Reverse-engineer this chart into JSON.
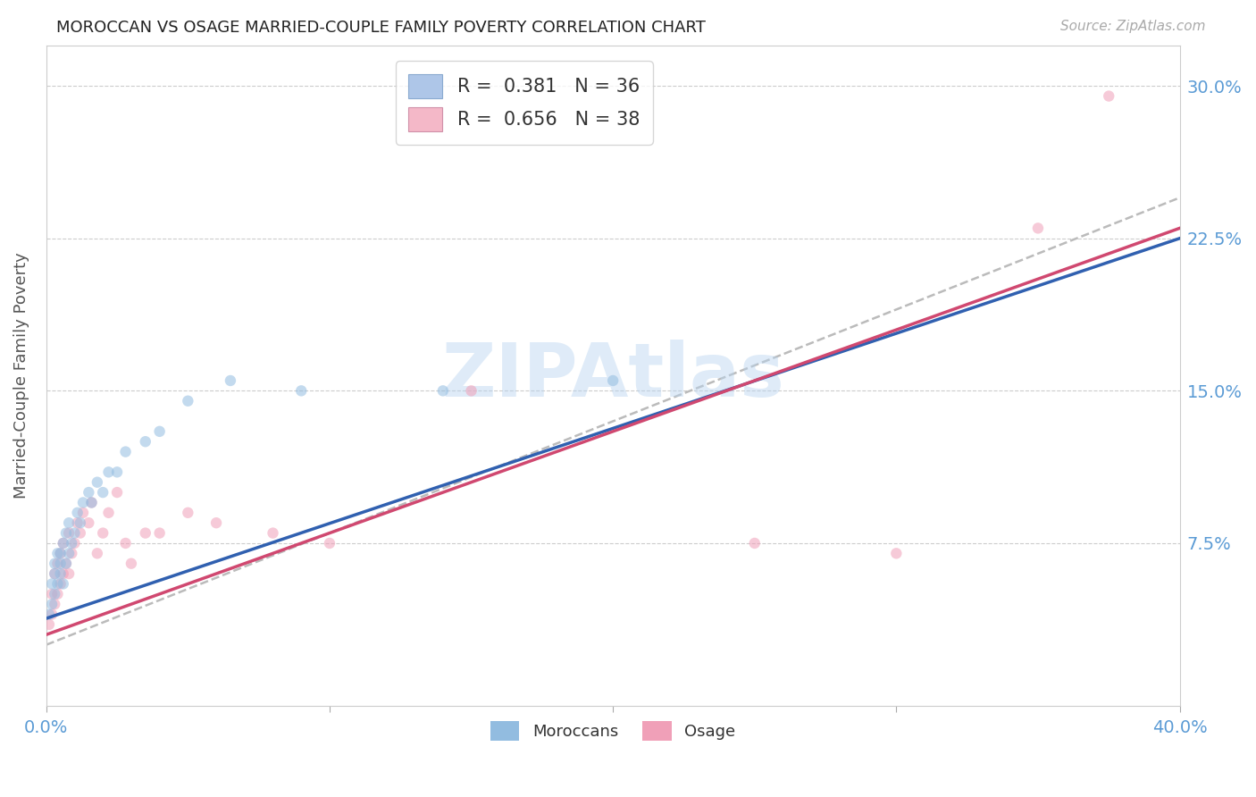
{
  "title": "MOROCCAN VS OSAGE MARRIED-COUPLE FAMILY POVERTY CORRELATION CHART",
  "source": "Source: ZipAtlas.com",
  "ylabel": "Married-Couple Family Poverty",
  "xlabel": "",
  "xlim": [
    0.0,
    0.4
  ],
  "ylim": [
    -0.005,
    0.32
  ],
  "xticks": [
    0.0,
    0.1,
    0.2,
    0.3,
    0.4
  ],
  "xticklabels": [
    "0.0%",
    "",
    "",
    "",
    "40.0%"
  ],
  "ytick_positions": [
    0.075,
    0.15,
    0.225,
    0.3
  ],
  "yticklabels": [
    "7.5%",
    "15.0%",
    "22.5%",
    "30.0%"
  ],
  "watermark": "ZIPAtlas",
  "moroccan_color": "#92bce0",
  "osage_color": "#f0a0b8",
  "moroccan_line_color": "#3060b0",
  "osage_line_color": "#d04870",
  "dashed_line_color": "#bbbbbb",
  "moroccan_N": 36,
  "osage_N": 38,
  "background_color": "#ffffff",
  "grid_color": "#cccccc",
  "marker_size": 80,
  "marker_alpha": 0.55,
  "title_color": "#222222",
  "axis_label_color": "#555555",
  "tick_label_color": "#5b9bd5",
  "moroccan_x": [
    0.001,
    0.002,
    0.002,
    0.003,
    0.003,
    0.003,
    0.004,
    0.004,
    0.005,
    0.005,
    0.005,
    0.006,
    0.006,
    0.007,
    0.007,
    0.008,
    0.008,
    0.009,
    0.01,
    0.011,
    0.012,
    0.013,
    0.015,
    0.016,
    0.018,
    0.02,
    0.022,
    0.025,
    0.028,
    0.035,
    0.04,
    0.05,
    0.065,
    0.09,
    0.14,
    0.2
  ],
  "moroccan_y": [
    0.04,
    0.045,
    0.055,
    0.05,
    0.06,
    0.065,
    0.055,
    0.07,
    0.06,
    0.065,
    0.07,
    0.055,
    0.075,
    0.065,
    0.08,
    0.07,
    0.085,
    0.075,
    0.08,
    0.09,
    0.085,
    0.095,
    0.1,
    0.095,
    0.105,
    0.1,
    0.11,
    0.11,
    0.12,
    0.125,
    0.13,
    0.145,
    0.155,
    0.15,
    0.15,
    0.155
  ],
  "osage_x": [
    0.001,
    0.002,
    0.002,
    0.003,
    0.003,
    0.004,
    0.004,
    0.005,
    0.005,
    0.006,
    0.006,
    0.007,
    0.008,
    0.008,
    0.009,
    0.01,
    0.011,
    0.012,
    0.013,
    0.015,
    0.016,
    0.018,
    0.02,
    0.022,
    0.025,
    0.028,
    0.03,
    0.035,
    0.04,
    0.05,
    0.06,
    0.08,
    0.1,
    0.15,
    0.25,
    0.3,
    0.35,
    0.375
  ],
  "osage_y": [
    0.035,
    0.04,
    0.05,
    0.045,
    0.06,
    0.05,
    0.065,
    0.055,
    0.07,
    0.06,
    0.075,
    0.065,
    0.06,
    0.08,
    0.07,
    0.075,
    0.085,
    0.08,
    0.09,
    0.085,
    0.095,
    0.07,
    0.08,
    0.09,
    0.1,
    0.075,
    0.065,
    0.08,
    0.08,
    0.09,
    0.085,
    0.08,
    0.075,
    0.15,
    0.075,
    0.07,
    0.23,
    0.295
  ],
  "moroccan_line_x": [
    0.0,
    0.4
  ],
  "moroccan_line_y": [
    0.038,
    0.225
  ],
  "osage_line_x": [
    0.0,
    0.4
  ],
  "osage_line_y": [
    0.03,
    0.23
  ],
  "dashed_line_x": [
    0.0,
    0.4
  ],
  "dashed_line_y": [
    0.025,
    0.245
  ]
}
